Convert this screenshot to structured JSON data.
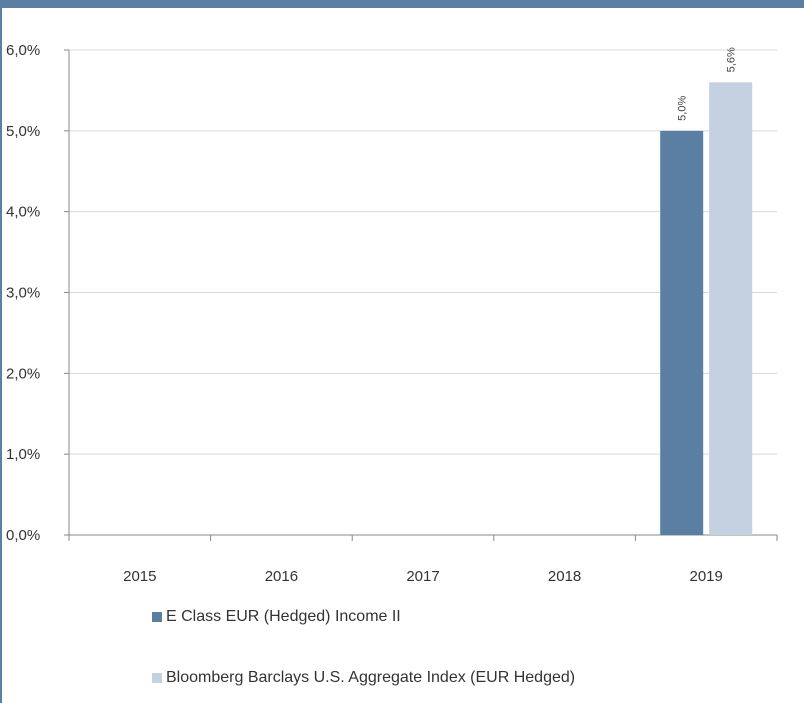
{
  "chart_data": {
    "type": "bar",
    "categories": [
      "2015",
      "2016",
      "2017",
      "2018",
      "2019"
    ],
    "series": [
      {
        "name": "E Class EUR (Hedged) Income II",
        "color": "#5b7fa3",
        "values": [
          null,
          null,
          null,
          null,
          5.0
        ],
        "labels": [
          "",
          "",
          "",
          "",
          "5,0%"
        ]
      },
      {
        "name": "Bloomberg Barclays U.S. Aggregate Index (EUR Hedged)",
        "color": "#c4d1e1",
        "values": [
          null,
          null,
          null,
          null,
          5.6
        ],
        "labels": [
          "",
          "",
          "",
          "",
          "5,6%"
        ]
      }
    ],
    "ylim": [
      0,
      6
    ],
    "yticks": [
      {
        "value": 0,
        "label": "0,0%"
      },
      {
        "value": 1,
        "label": "1,0%"
      },
      {
        "value": 2,
        "label": "2,0%"
      },
      {
        "value": 3,
        "label": "3,0%"
      },
      {
        "value": 4,
        "label": "4,0%"
      },
      {
        "value": 5,
        "label": "5,0%"
      },
      {
        "value": 6,
        "label": "6,0%"
      }
    ],
    "grid": true,
    "legend_position": "bottom",
    "xlabel": "",
    "ylabel": "",
    "title": ""
  }
}
